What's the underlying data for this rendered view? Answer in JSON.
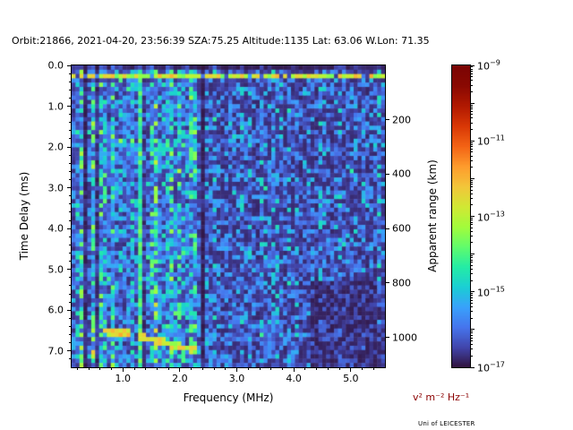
{
  "header": {
    "title": "Orbit:21866, 2021-04-20, 23:56:39 SZA:75.25 Altitude:1135 Lat: 63.06 W.Lon: 71.35"
  },
  "footer": {
    "credit": "Uni of LEICESTER"
  },
  "chart_data": {
    "type": "heatmap",
    "description": "Topside radar sounder ionogram: spectral power vs frequency and time delay",
    "xlabel": "Frequency (MHz)",
    "ylabel_left": "Time Delay (ms)",
    "ylabel_right": "Apparent range (km)",
    "colorbar_unit_label": "v² m⁻² Hz⁻¹",
    "colormap": "turbo",
    "x_range_mhz": [
      0.1,
      5.6
    ],
    "y_range_ms": [
      0.0,
      7.4
    ],
    "x_major_ticks": [
      "1.0",
      "2.0",
      "3.0",
      "4.0",
      "5.0"
    ],
    "x_minor_step_mhz": 0.2,
    "y_major_ticks": [
      "0.0",
      "1.0",
      "2.0",
      "3.0",
      "4.0",
      "5.0",
      "6.0",
      "7.0"
    ],
    "y_minor_step_ms": 0.2,
    "right_axis_ticks_km": [
      200,
      400,
      600,
      800,
      1000
    ],
    "km_per_ms": 150,
    "colorbar": {
      "scale": "log10",
      "top_value_exp": -9,
      "bottom_value_exp": -17,
      "labeled_exps": [
        -9,
        -11,
        -13,
        -15,
        -17
      ]
    },
    "colors": {
      "unit_label": "#8b0000"
    },
    "grid": {
      "cols": 80,
      "rows": 70
    },
    "noise_seed": 21866,
    "features": {
      "left_region_max_mhz": 2.3,
      "tx_pulse": {
        "delay_ms": 0.3,
        "half_width_ms": 0.06,
        "intensity": 0.5
      },
      "plasma_lines": [
        {
          "freq_mhz": 1.3,
          "half_width_mhz": 0.045,
          "intensity": 0.34
        }
      ],
      "dark_bands_mhz": [
        [
          0.28,
          0.4
        ],
        [
          0.5,
          0.58
        ],
        [
          2.38,
          2.46
        ]
      ],
      "echo_trace": [
        {
          "freq_mhz": [
            0.65,
            1.15
          ],
          "delay_start_ms": 6.5,
          "delay_end_ms": 6.6,
          "intensity": 0.55
        },
        {
          "freq_mhz": [
            1.25,
            1.75
          ],
          "delay_start_ms": 6.65,
          "delay_end_ms": 6.78,
          "intensity": 0.52
        },
        {
          "freq_mhz": [
            1.75,
            2.33
          ],
          "delay_start_ms": 6.82,
          "delay_end_ms": 7.0,
          "intensity": 0.5
        }
      ],
      "dark_corner": {
        "freq_min_mhz": 4.3,
        "delay_min_ms": 5.3,
        "factor": 0.5
      }
    }
  }
}
